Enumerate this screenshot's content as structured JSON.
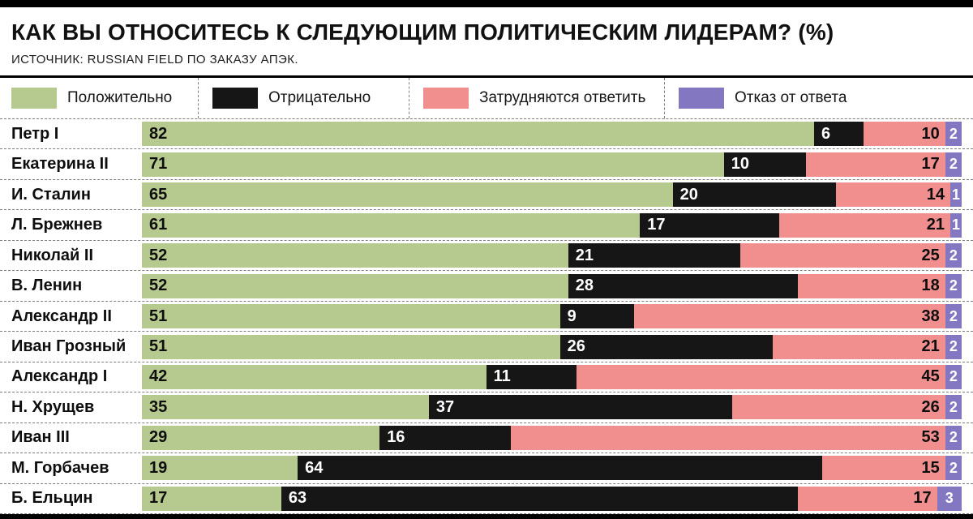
{
  "header": {
    "title": "КАК ВЫ ОТНОСИТЕСЬ К СЛЕДУЮЩИМ ПОЛИТИЧЕСКИМ ЛИДЕРАМ? (%)",
    "source": "ИСТОЧНИК: RUSSIAN FIELD ПО ЗАКАЗУ АПЭК."
  },
  "legend": [
    {
      "label": "Положительно",
      "color": "#b6c98e"
    },
    {
      "label": "Отрицательно",
      "color": "#161616"
    },
    {
      "label": "Затрудняются ответить",
      "color": "#f08f8e"
    },
    {
      "label": "Отказ от ответа",
      "color": "#8277c0"
    }
  ],
  "chart_data": {
    "type": "bar",
    "orientation": "horizontal",
    "stacked": true,
    "unit": "%",
    "title": "КАК ВЫ ОТНОСИТЕСЬ К СЛЕДУЮЩИМ ПОЛИТИЧЕСКИМ ЛИДЕРАМ? (%)",
    "source": "ИСТОЧНИК: RUSSIAN FIELD ПО ЗАКАЗУ АПЭК.",
    "xlim": [
      0,
      100
    ],
    "categories": [
      "Петр I",
      "Екатерина II",
      "И. Сталин",
      "Л. Брежнев",
      "Николай II",
      "В. Ленин",
      "Александр II",
      "Иван Грозный",
      "Александр I",
      "Н. Хрущев",
      "Иван III",
      "М. Горбачев",
      "Б. Ельцин"
    ],
    "series": [
      {
        "name": "Положительно",
        "color": "#b6c98e",
        "text_color": "#0e0e0e",
        "values": [
          82,
          71,
          65,
          61,
          52,
          52,
          51,
          51,
          42,
          35,
          29,
          19,
          17
        ]
      },
      {
        "name": "Отрицательно",
        "color": "#161616",
        "text_color": "#ffffff",
        "values": [
          6,
          10,
          20,
          17,
          21,
          28,
          9,
          26,
          11,
          37,
          16,
          64,
          63
        ]
      },
      {
        "name": "Затрудняются ответить",
        "color": "#f08f8e",
        "text_color": "#0e0e0e",
        "values": [
          10,
          17,
          14,
          21,
          25,
          18,
          38,
          21,
          45,
          26,
          53,
          15,
          17
        ]
      },
      {
        "name": "Отказ от ответа",
        "color": "#8277c0",
        "text_color": "#ffffff",
        "values": [
          2,
          2,
          1,
          1,
          2,
          2,
          2,
          2,
          2,
          2,
          2,
          2,
          3
        ]
      }
    ]
  }
}
